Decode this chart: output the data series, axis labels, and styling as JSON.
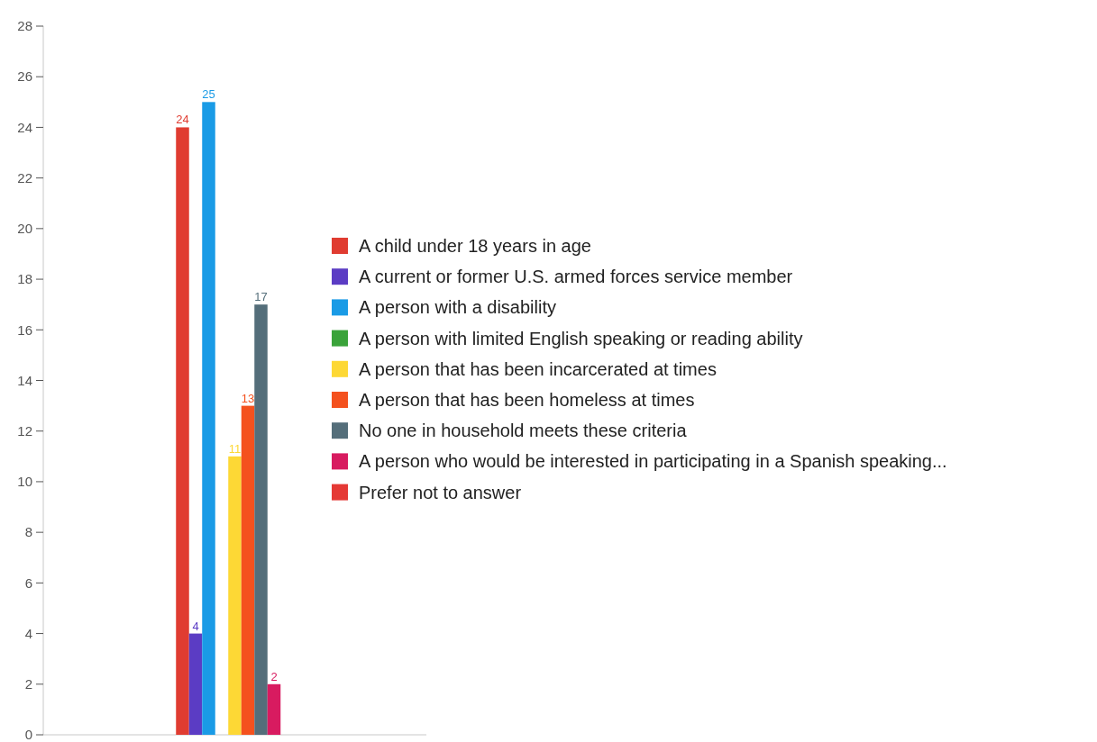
{
  "chart_data": {
    "type": "bar",
    "categories": [
      null
    ],
    "ylim": [
      0,
      28
    ],
    "yticks": [
      0,
      2,
      4,
      6,
      8,
      10,
      12,
      14,
      16,
      18,
      20,
      22,
      24,
      26,
      28
    ],
    "grid": false,
    "legend": "right",
    "series": [
      {
        "name": "A child under 18 years in age",
        "color": "#e03c31",
        "values": [
          24
        ],
        "value_labels": [
          "24"
        ]
      },
      {
        "name": "A current or former U.S. armed forces service member",
        "color": "#5b3cc4",
        "values": [
          4
        ],
        "value_labels": [
          "4"
        ]
      },
      {
        "name": "A person with a disability",
        "color": "#1a9be6",
        "values": [
          25
        ],
        "value_labels": [
          "25"
        ]
      },
      {
        "name": "A person with limited English speaking or reading ability",
        "color": "#3aa33a",
        "values": [
          0
        ],
        "value_labels": [
          null
        ]
      },
      {
        "name": "A person that has been incarcerated at times",
        "color": "#fdd835",
        "values": [
          11
        ],
        "value_labels": [
          "11"
        ]
      },
      {
        "name": "A person that has been homeless at times",
        "color": "#f4511e",
        "values": [
          13
        ],
        "value_labels": [
          "13"
        ]
      },
      {
        "name": "No one in household meets these criteria",
        "color": "#546e7a",
        "values": [
          17
        ],
        "value_labels": [
          "17"
        ]
      },
      {
        "name": "A person who would be interested in participating in a Spanish speaking...",
        "color": "#d81b60",
        "values": [
          2
        ],
        "value_labels": [
          "2"
        ]
      },
      {
        "name": "Prefer not to answer",
        "color": "#e53935",
        "values": [
          0
        ],
        "value_labels": [
          null
        ]
      }
    ]
  }
}
